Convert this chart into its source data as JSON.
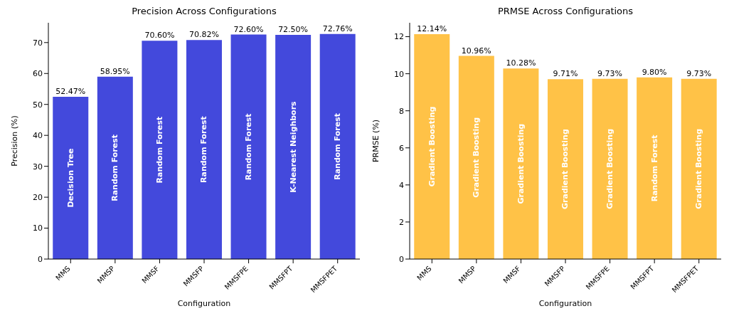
{
  "chart_data": [
    {
      "type": "bar",
      "title": "Precision Across Configurations",
      "xlabel": "Configuration",
      "ylabel": "Precision (%)",
      "categories": [
        "MMS",
        "MMSP",
        "MMSF",
        "MMSFP",
        "MMSFPE",
        "MMSFPT",
        "MMSFPET"
      ],
      "values": [
        52.47,
        58.95,
        70.6,
        70.82,
        72.6,
        72.5,
        72.76
      ],
      "color": "#4349dc",
      "value_labels": [
        "52.47%",
        "58.95%",
        "70.60%",
        "70.82%",
        "72.60%",
        "72.50%",
        "72.76%"
      ],
      "ylim": [
        0,
        76.4
      ],
      "yticks": [
        0,
        10,
        20,
        30,
        40,
        50,
        60,
        70
      ],
      "grid": false,
      "legend": false,
      "annotations": [
        "Decision Tree",
        "Random Forest",
        "Random Forest",
        "Random Forest",
        "Random Forest",
        "K-Nearest Neighbors",
        "Random Forest"
      ]
    },
    {
      "type": "bar",
      "title": "PRMSE Across Configurations",
      "xlabel": "Configuration",
      "ylabel": "PRMSE (%)",
      "categories": [
        "MMS",
        "MMSP",
        "MMSF",
        "MMSFP",
        "MMSFPE",
        "MMSFPT",
        "MMSFPET"
      ],
      "values": [
        12.14,
        10.96,
        10.28,
        9.71,
        9.73,
        9.8,
        9.73
      ],
      "color": "#ffc247",
      "value_labels": [
        "12.14%",
        "10.96%",
        "10.28%",
        "9.71%",
        "9.73%",
        "9.80%",
        "9.73%"
      ],
      "ylim": [
        0,
        12.75
      ],
      "yticks": [
        0,
        2,
        4,
        6,
        8,
        10,
        12
      ],
      "grid": false,
      "legend": false,
      "annotations": [
        "Gradient Boosting",
        "Gradient Boosting",
        "Gradient Boosting",
        "Gradient Boosting",
        "Gradient Boosting",
        "Random Forest",
        "Gradient Boosting"
      ]
    }
  ]
}
